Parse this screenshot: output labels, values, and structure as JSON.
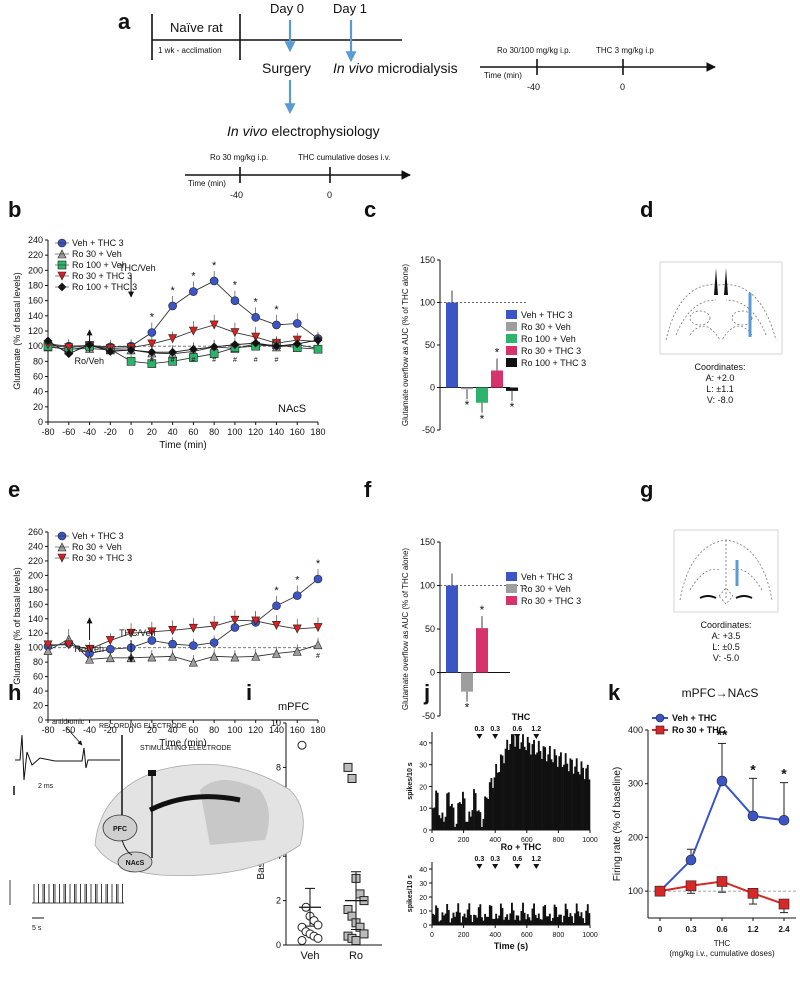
{
  "panel_letters": {
    "a": "a",
    "b": "b",
    "c": "c",
    "d": "d",
    "e": "e",
    "f": "f",
    "g": "g",
    "h": "h",
    "i": "i",
    "j": "j",
    "k": "k"
  },
  "panel_a": {
    "naive_rat": "Naïve rat",
    "acclimation": "1 wk - acclimation",
    "day0": "Day 0",
    "day1": "Day 1",
    "surgery": "Surgery",
    "microdialysis_italic": "In vivo",
    "microdialysis_rest": "microdialysis",
    "ephys_italic": "In vivo",
    "ephys_rest": "electrophysiology",
    "md_timeline": {
      "ro_label": "Ro 30/100 mg/kg i.p.",
      "thc_label": "THC 3 mg/kg i.p",
      "time_label": "Time (min)",
      "t1": "-40",
      "t2": "0"
    },
    "ep_timeline": {
      "ro_label": "Ro 30 mg/kg i.p.",
      "thc_label": "THC cumulative doses i.v.",
      "time_label": "Time (min)",
      "t1": "-40",
      "t2": "0"
    }
  },
  "chart_data": [
    {
      "id": "b",
      "type": "line",
      "region": "NAcS",
      "xlabel": "Time (min)",
      "ylabel": "Glutamate (% of basal levels)",
      "xlim": [
        -80,
        180
      ],
      "ylim": [
        0,
        240
      ],
      "xticks": [
        "-80",
        "-60",
        "-40",
        "-20",
        "0",
        "20",
        "40",
        "60",
        "80",
        "100",
        "120",
        "140",
        "160",
        "180"
      ],
      "yticks": [
        "0",
        "20",
        "40",
        "60",
        "80",
        "100",
        "120",
        "140",
        "160",
        "180",
        "200",
        "220",
        "240"
      ],
      "x": [
        -80,
        -60,
        -40,
        -20,
        0,
        20,
        40,
        60,
        80,
        100,
        120,
        140,
        160,
        180
      ],
      "annotations": {
        "thc": "THC/Veh",
        "ro": "Ro/Veh",
        "stars": "*",
        "hash": "#"
      },
      "series": [
        {
          "name": "Veh + THC 3",
          "color": "#3b55c6",
          "marker": "circle",
          "values": [
            103,
            100,
            101,
            99,
            100,
            118,
            153,
            172,
            186,
            160,
            138,
            128,
            130,
            110
          ]
        },
        {
          "name": "Ro 30 + Veh",
          "color": "#9e9e9e",
          "marker": "triangle",
          "values": [
            99,
            96,
            97,
            95,
            95,
            91,
            90,
            93,
            99,
            97,
            103,
            99,
            102,
            97
          ]
        },
        {
          "name": "Ro 100 + Veh",
          "color": "#2db36b",
          "marker": "square",
          "values": [
            100,
            95,
            100,
            96,
            80,
            77,
            80,
            85,
            90,
            98,
            100,
            102,
            98,
            96
          ]
        },
        {
          "name": "Ro 30 + THC 3",
          "color": "#e02020",
          "marker": "triangle-down",
          "values": [
            102,
            98,
            101,
            97,
            98,
            103,
            110,
            120,
            128,
            118,
            112,
            104,
            108,
            106
          ]
        },
        {
          "name": "Ro 100 + THC 3",
          "color": "#111111",
          "marker": "diamond",
          "values": [
            107,
            90,
            102,
            93,
            95,
            92,
            92,
            96,
            99,
            102,
            104,
            100,
            103,
            108
          ]
        }
      ]
    },
    {
      "id": "c",
      "type": "bar",
      "xlabel": "",
      "ylabel": "Glutamate overflow as AUC (% of THC alone)",
      "ylim": [
        -50,
        150
      ],
      "yticks": [
        "-50",
        "0",
        "50",
        "100",
        "150"
      ],
      "categories": [
        "Veh + THC 3",
        "Ro 30 + Veh",
        "Ro 100 + Veh",
        "Ro 30 + THC 3",
        "Ro 100 + THC 3"
      ],
      "values": [
        100,
        -2,
        -18,
        20,
        -4
      ],
      "colors": [
        "#3b55c6",
        "#9e9e9e",
        "#2db36b",
        "#d6336c",
        "#111111"
      ],
      "reference": 100,
      "star": "*"
    },
    {
      "id": "e",
      "type": "line",
      "region": "mPFC",
      "xlabel": "Time (min)",
      "ylabel": "Glutamate (% of basal levels)",
      "xlim": [
        -80,
        180
      ],
      "ylim": [
        0,
        260
      ],
      "xticks": [
        "-80",
        "-60",
        "-40",
        "-20",
        "0",
        "20",
        "40",
        "60",
        "80",
        "100",
        "120",
        "140",
        "160",
        "180"
      ],
      "yticks": [
        "0",
        "20",
        "40",
        "60",
        "80",
        "100",
        "120",
        "140",
        "160",
        "180",
        "200",
        "220",
        "240",
        "260"
      ],
      "x": [
        -80,
        -60,
        -40,
        -20,
        0,
        20,
        40,
        60,
        80,
        100,
        120,
        140,
        160,
        180
      ],
      "annotations": {
        "thc": "THC/Veh",
        "ro": "Ro/Veh",
        "stars": "*",
        "hash": "#"
      },
      "series": [
        {
          "name": "Veh + THC 3",
          "color": "#3b55c6",
          "marker": "circle",
          "values": [
            102,
            106,
            92,
            98,
            100,
            110,
            105,
            103,
            107,
            128,
            135,
            158,
            172,
            195
          ]
        },
        {
          "name": "Ro 30 + Veh",
          "color": "#9e9e9e",
          "marker": "triangle",
          "values": [
            96,
            112,
            84,
            86,
            86,
            87,
            88,
            80,
            88,
            87,
            88,
            92,
            95,
            104
          ]
        },
        {
          "name": "Ro 30 + THC 3",
          "color": "#e02020",
          "marker": "triangle-down",
          "values": [
            104,
            104,
            98,
            110,
            120,
            122,
            124,
            127,
            130,
            138,
            137,
            131,
            126,
            128
          ]
        }
      ]
    },
    {
      "id": "f",
      "type": "bar",
      "ylabel": "Glutamate overflow as AUC (% of THC alone)",
      "ylim": [
        -50,
        150
      ],
      "yticks": [
        "-50",
        "0",
        "50",
        "100",
        "150"
      ],
      "categories": [
        "Veh + THC 3",
        "Ro 30 + Veh",
        "Ro 30 + THC 3"
      ],
      "values": [
        100,
        -22,
        51
      ],
      "colors": [
        "#3b55c6",
        "#9e9e9e",
        "#d6336c"
      ],
      "reference": 100,
      "star": "*"
    },
    {
      "id": "i",
      "type": "scatter",
      "ylabel": "Basal firing rate (Hz)",
      "ylim": [
        0,
        10
      ],
      "yticks": [
        "0",
        "2",
        "4",
        "6",
        "8",
        "10"
      ],
      "categories": [
        "Veh",
        "Ro"
      ],
      "groups": [
        {
          "name": "Veh",
          "marker": "open-circle",
          "mean": 1.7,
          "sd": 0.85,
          "values": [
            9.0,
            1.7,
            1.3,
            1.1,
            0.9,
            0.8,
            0.6,
            0.5,
            0.4,
            0.3,
            0.2
          ]
        },
        {
          "name": "Ro",
          "marker": "open-square",
          "mean": 2.0,
          "sd": 1.3,
          "values": [
            8.0,
            7.5,
            3.0,
            2.3,
            2.0,
            1.6,
            1.3,
            1.0,
            0.8,
            0.5,
            0.4,
            0.3,
            0.2
          ]
        }
      ]
    },
    {
      "id": "j",
      "type": "bar",
      "subplots": [
        {
          "title": "THC",
          "xlabel": "",
          "ylabel": "spikes/10 s",
          "xlim": [
            0,
            1000
          ],
          "ylim": [
            0,
            45
          ],
          "xticks": [
            "0",
            "200",
            "400",
            "600",
            "800",
            "1000"
          ],
          "yticks": [
            "0",
            "10",
            "20",
            "30",
            "40"
          ],
          "dose_marks": [
            "0.3",
            "0.3",
            "0.6",
            "1.2"
          ],
          "dose_times": [
            300,
            400,
            540,
            660
          ]
        },
        {
          "title": "Ro + THC",
          "xlabel": "Time (s)",
          "ylabel": "spikes/10 s",
          "xlim": [
            0,
            1000
          ],
          "ylim": [
            0,
            45
          ],
          "xticks": [
            "0",
            "200",
            "400",
            "600",
            "800",
            "1000"
          ],
          "yticks": [
            "0",
            "10",
            "20",
            "30",
            "40"
          ],
          "dose_marks": [
            "0.3",
            "0.3",
            "0.6",
            "1.2"
          ],
          "dose_times": [
            300,
            400,
            540,
            660
          ]
        }
      ]
    },
    {
      "id": "k",
      "type": "line",
      "title": "mPFC→NAcS",
      "xlabel": "THC",
      "xlabel2": "(mg/kg i.v., cumulative doses)",
      "ylabel": "Firing rate (% of baseline)",
      "ylim": [
        50,
        400
      ],
      "yticks": [
        "100",
        "200",
        "300",
        "400"
      ],
      "categories": [
        "0",
        "0.3",
        "0.6",
        "1.2",
        "2.4"
      ],
      "series": [
        {
          "name": "Veh + THC",
          "color": "#3b55c6",
          "marker": "circle",
          "values": [
            100,
            158,
            305,
            240,
            232
          ],
          "err": [
            8,
            20,
            70,
            70,
            70
          ]
        },
        {
          "name": "Ro 30 + THC",
          "color": "#d62828",
          "marker": "square",
          "values": [
            100,
            110,
            118,
            96,
            76
          ],
          "err": [
            8,
            14,
            20,
            20,
            16
          ]
        }
      ],
      "significance": [
        "",
        "",
        "**",
        "*",
        "*"
      ]
    }
  ],
  "panel_d": {
    "title": "Coordinates:",
    "a": "A: +2.0",
    "l": "L: ±1.1",
    "v": "V: -8.0"
  },
  "panel_g": {
    "title": "Coordinates:",
    "a": "A: +3.5",
    "l": "L: ±0.5",
    "v": "V: -5.0"
  },
  "panel_h": {
    "antidromic": "antidromic",
    "recording": "RECORDING ELECTRODE",
    "stimulating": "STIMULATING ELECTRODE",
    "pfc": "PFC",
    "nacs": "NAcS",
    "scale1": "2 ms",
    "scale2": "5 s"
  }
}
